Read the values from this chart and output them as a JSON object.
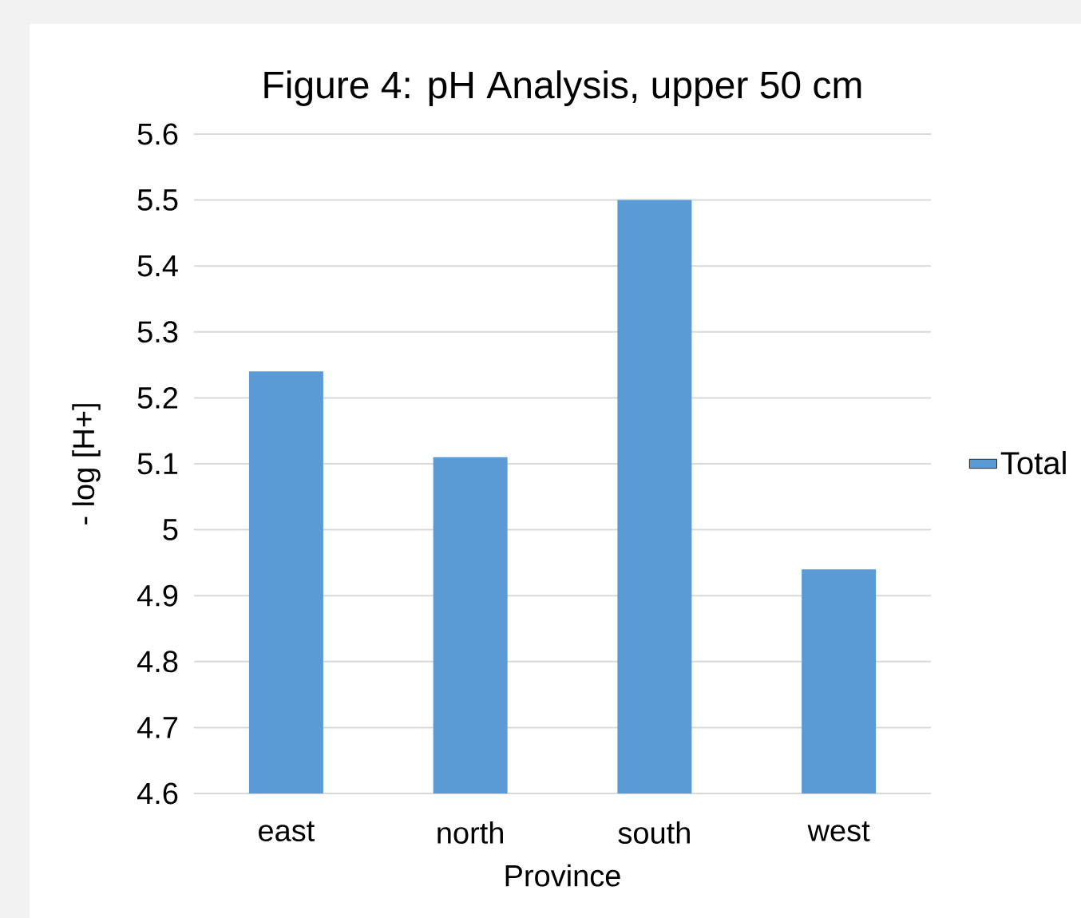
{
  "chart_data": {
    "type": "bar",
    "title": "Figure 4: pH Analysis, upper 50 cm",
    "xlabel": "Province",
    "ylabel": "- log [H+]",
    "categories": [
      "east",
      "north",
      "south",
      "west"
    ],
    "series": [
      {
        "name": "Total",
        "color": "#5b9bd5",
        "values": [
          5.24,
          5.11,
          5.5,
          4.94
        ]
      }
    ],
    "ylim": [
      4.6,
      5.6
    ],
    "yticks": [
      4.6,
      4.7,
      4.8,
      4.9,
      5,
      5.1,
      5.2,
      5.3,
      5.4,
      5.5,
      5.6
    ],
    "grid": "y",
    "legend": "right"
  }
}
